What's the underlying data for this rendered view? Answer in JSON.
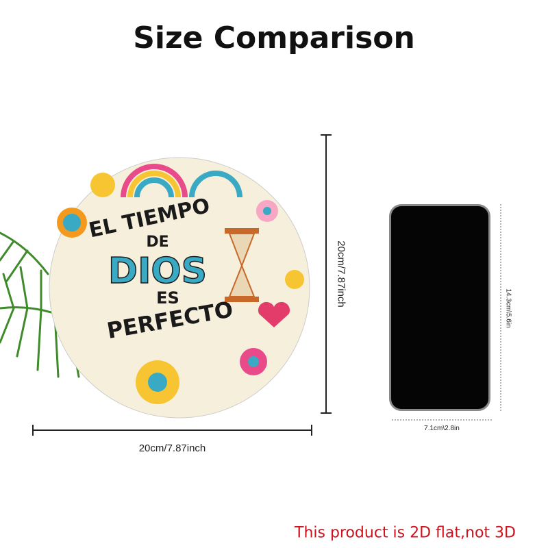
{
  "title": "Size Comparison",
  "product": {
    "artwork_text": [
      "EL TIEMPO",
      "DE",
      "DIOS",
      "ES",
      "PERFECTO"
    ],
    "width_label": "20cm/7.87inch",
    "height_label": "20cm/7.87inch"
  },
  "phone": {
    "height_label": "14.3cm\\5.6in",
    "width_label": "7.1cm\\2.8in"
  },
  "note": "This product is 2D flat,not 3D",
  "colors": {
    "note": "#d0101b",
    "dios": "#3aa9c4",
    "background": "#ffffff"
  }
}
